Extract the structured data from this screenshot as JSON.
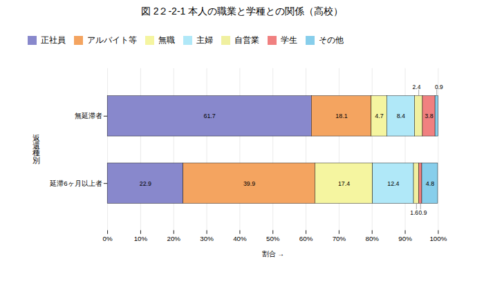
{
  "chart_data": {
    "type": "bar",
    "orientation": "horizontal",
    "stacked": true,
    "title": "図 2２-2-1  本人の職業と学種との関係（高校）",
    "xlabel": "割合",
    "ylabel": "返\n還\n種\n別",
    "categories": [
      "無延滞者",
      "延滞6ヶ月以上者"
    ],
    "series": [
      {
        "name": "正社員",
        "color": "#8888cc",
        "values": [
          61.7,
          22.9
        ]
      },
      {
        "name": "アルバイト等",
        "color": "#f4a460",
        "values": [
          18.1,
          39.9
        ]
      },
      {
        "name": "無職",
        "color": "#f5f5a0",
        "values": [
          4.7,
          17.4
        ]
      },
      {
        "name": "主婦",
        "color": "#b0e8f8",
        "values": [
          8.4,
          12.4
        ]
      },
      {
        "name": "自営業",
        "color": "#f0f0a0",
        "values": [
          2.4,
          1.6
        ]
      },
      {
        "name": "学生",
        "color": "#f08080",
        "values": [
          3.8,
          0.9
        ]
      },
      {
        "name": "その他",
        "color": "#87ceeb",
        "values": [
          0.9,
          4.8
        ]
      }
    ],
    "xlim": [
      0,
      100
    ],
    "xticks": [
      {
        "value": 0,
        "label": "0%"
      },
      {
        "value": 10,
        "label": "10%"
      },
      {
        "value": 20,
        "label": "20%"
      },
      {
        "value": 30,
        "label": "30%"
      },
      {
        "value": 40,
        "label": "40%"
      },
      {
        "value": 50,
        "label": "50%"
      },
      {
        "value": 60,
        "label": "60%"
      },
      {
        "value": 70,
        "label": "70%"
      },
      {
        "value": 80,
        "label": "80%"
      },
      {
        "value": 90,
        "label": "90%"
      },
      {
        "value": 100,
        "label": "100%"
      }
    ],
    "grid": true,
    "legend": "top",
    "data_labels": true
  }
}
